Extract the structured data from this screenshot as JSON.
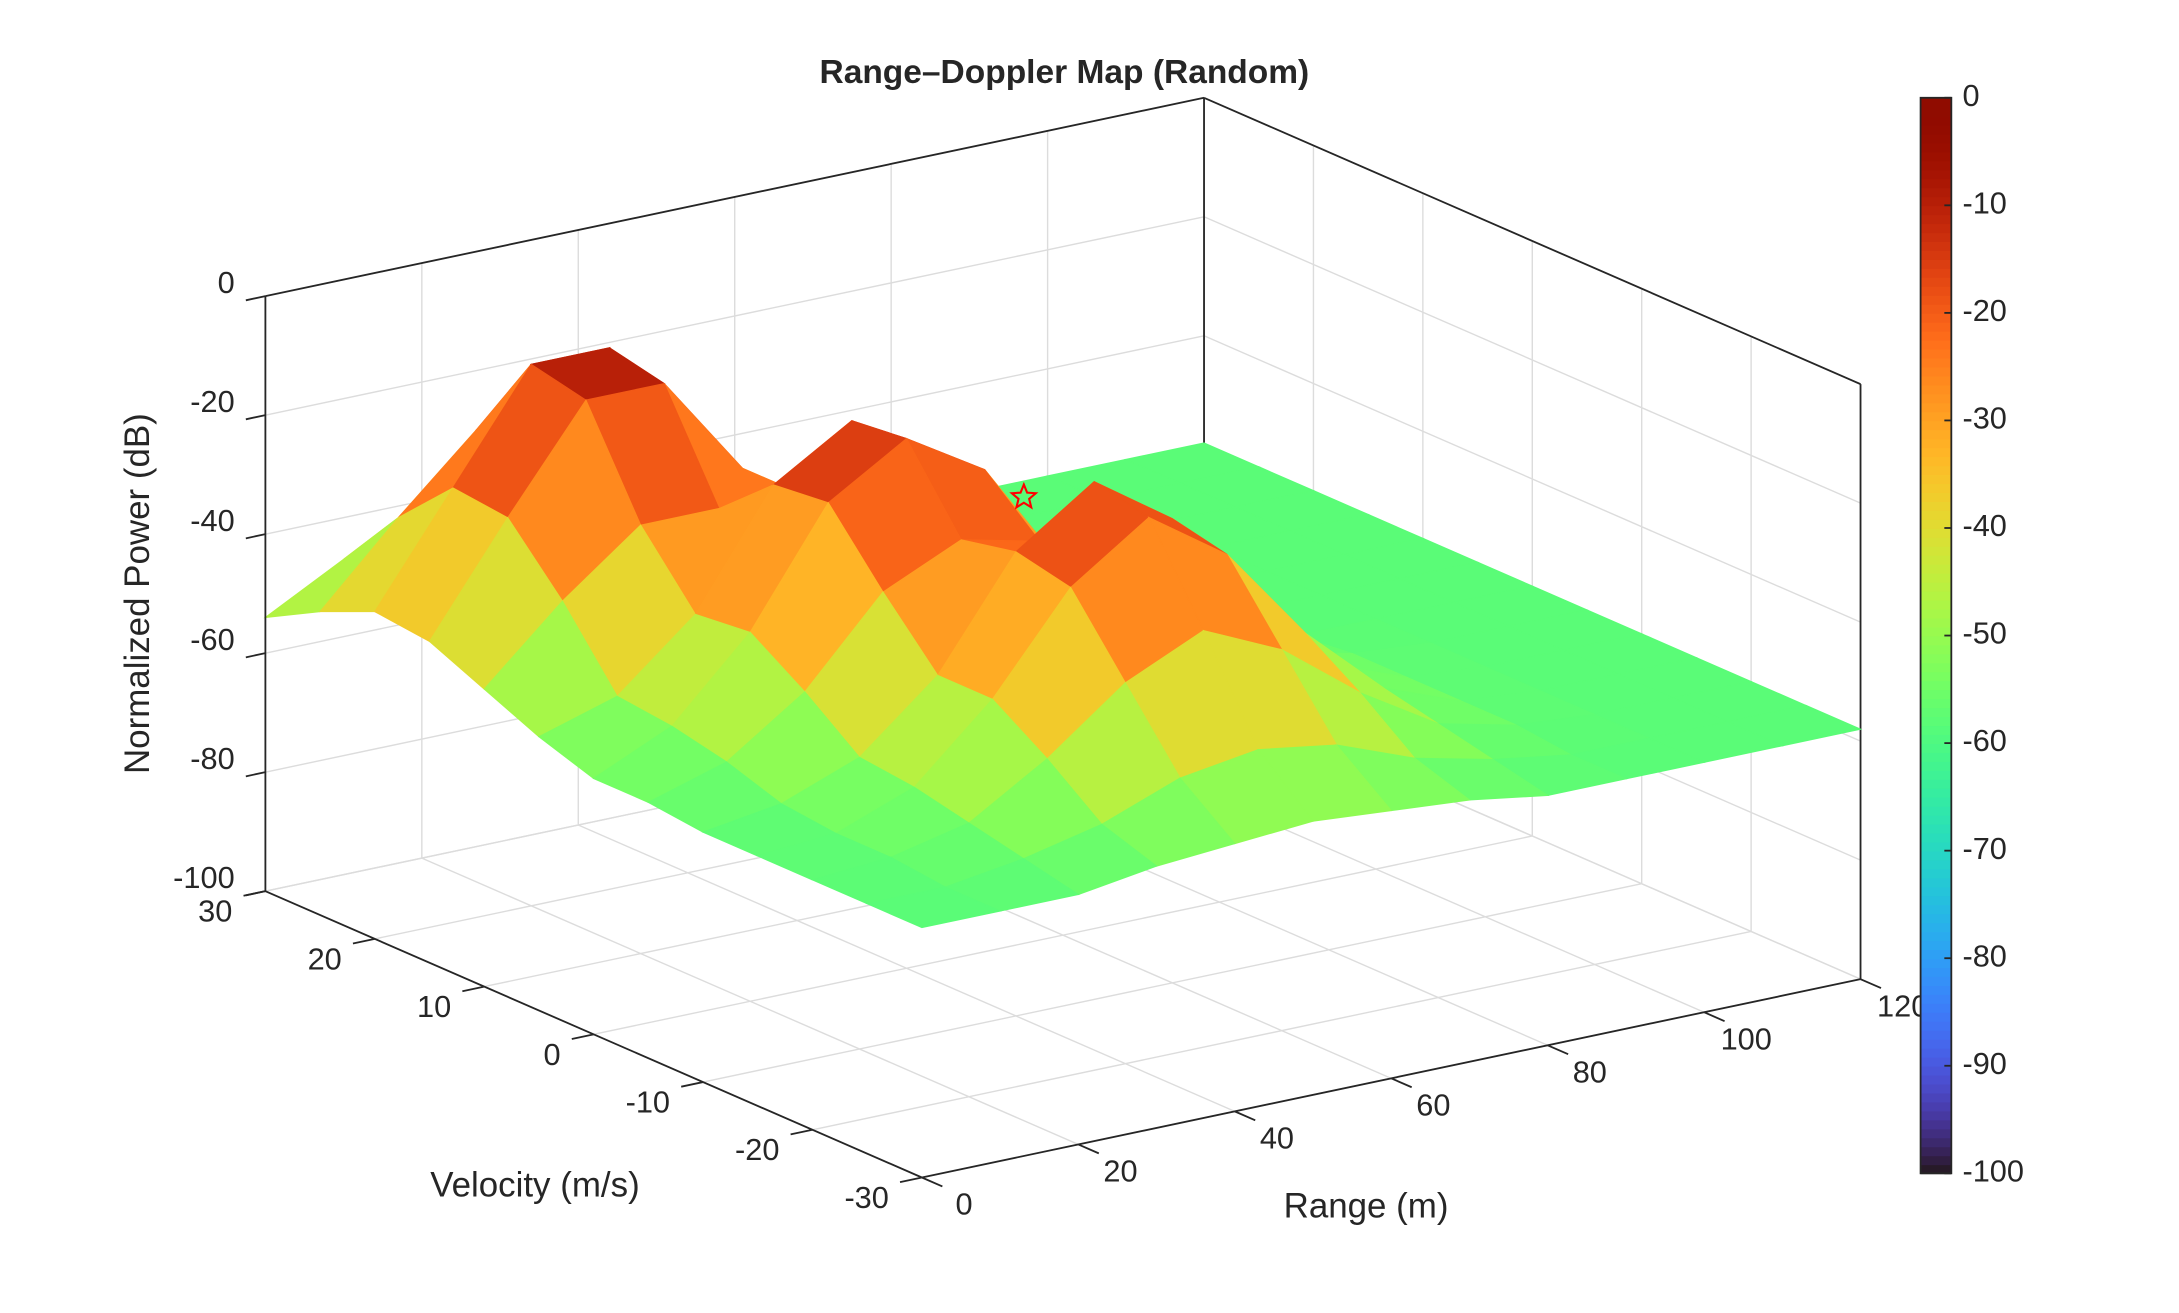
{
  "chart_data": {
    "type": "surface",
    "title": "Range–Doppler Map (Random)",
    "xlabel": "Range (m)",
    "ylabel": "Velocity (m/s)",
    "zlabel": "Normalized Power (dB)",
    "x": [
      0,
      10,
      20,
      30,
      40,
      50,
      60,
      70,
      80,
      90,
      100,
      110,
      120
    ],
    "y": [
      30,
      25,
      20,
      15,
      10,
      5,
      0,
      -5,
      -10,
      -15,
      -20,
      -25,
      -30
    ],
    "z": [
      [
        -54,
        -47,
        -42,
        -42,
        -47,
        -54,
        -57,
        -58,
        -58,
        -58,
        -58,
        -58,
        -58
      ],
      [
        -49,
        -36,
        -24,
        -24,
        -36,
        -49,
        -56,
        -58,
        -58,
        -58,
        -58,
        -58,
        -58
      ],
      [
        -45,
        -27,
        -9,
        -9,
        -27,
        -45,
        -55,
        -58,
        -58,
        -58,
        -58,
        -58,
        -58
      ],
      [
        -46,
        -28,
        -11,
        -11,
        -28,
        -46,
        -52,
        -56,
        -58,
        -58,
        -58,
        -58,
        -58
      ],
      [
        -50,
        -38,
        -28,
        -28,
        -28,
        -34,
        -46,
        -54,
        -57,
        -58,
        -58,
        -58,
        -58
      ],
      [
        -54,
        -50,
        -39,
        -20,
        -12,
        -20,
        -39,
        -52,
        -57,
        -58,
        -58,
        -58,
        -58
      ],
      [
        -57,
        -51,
        -38,
        -19,
        -11,
        -19,
        -38,
        -51,
        -56,
        -58,
        -58,
        -58,
        -58
      ],
      [
        -57,
        -53,
        -44,
        -30,
        -24,
        -27,
        -33,
        -45,
        -54,
        -57,
        -58,
        -58,
        -58
      ],
      [
        -58,
        -56,
        -51,
        -40,
        -22,
        -13,
        -22,
        -40,
        -52,
        -57,
        -58,
        -58,
        -58
      ],
      [
        -58,
        -57,
        -52,
        -40,
        -24,
        -15,
        -24,
        -40,
        -52,
        -57,
        -58,
        -58,
        -58
      ],
      [
        -58,
        -57,
        -54,
        -46,
        -36,
        -30,
        -36,
        -46,
        -54,
        -57,
        -58,
        -58,
        -58
      ],
      [
        -58,
        -58,
        -56,
        -53,
        -48,
        -46,
        -48,
        -53,
        -56,
        -58,
        -58,
        -58,
        -58
      ],
      [
        -58,
        -58,
        -58,
        -56,
        -55,
        -54,
        -55,
        -56,
        -58,
        -58,
        -58,
        -58,
        -58
      ]
    ],
    "xlim": [
      0,
      120
    ],
    "xticks": [
      0,
      20,
      40,
      60,
      80,
      100,
      120
    ],
    "ylim": [
      -30,
      30
    ],
    "yticks": [
      30,
      20,
      10,
      0,
      -10,
      -20,
      -30
    ],
    "zlim": [
      -100,
      0
    ],
    "zticks": [
      0,
      -20,
      -40,
      -60,
      -80,
      -100
    ],
    "colormap": "turbo",
    "clim": [
      -100,
      0
    ],
    "cticks": [
      0,
      -10,
      -20,
      -30,
      -40,
      -50,
      -60,
      -70,
      -80,
      -90,
      -100
    ],
    "marker": {
      "x": 55,
      "y": 0,
      "z": -25,
      "color": "#ff0000"
    },
    "grid": true
  }
}
